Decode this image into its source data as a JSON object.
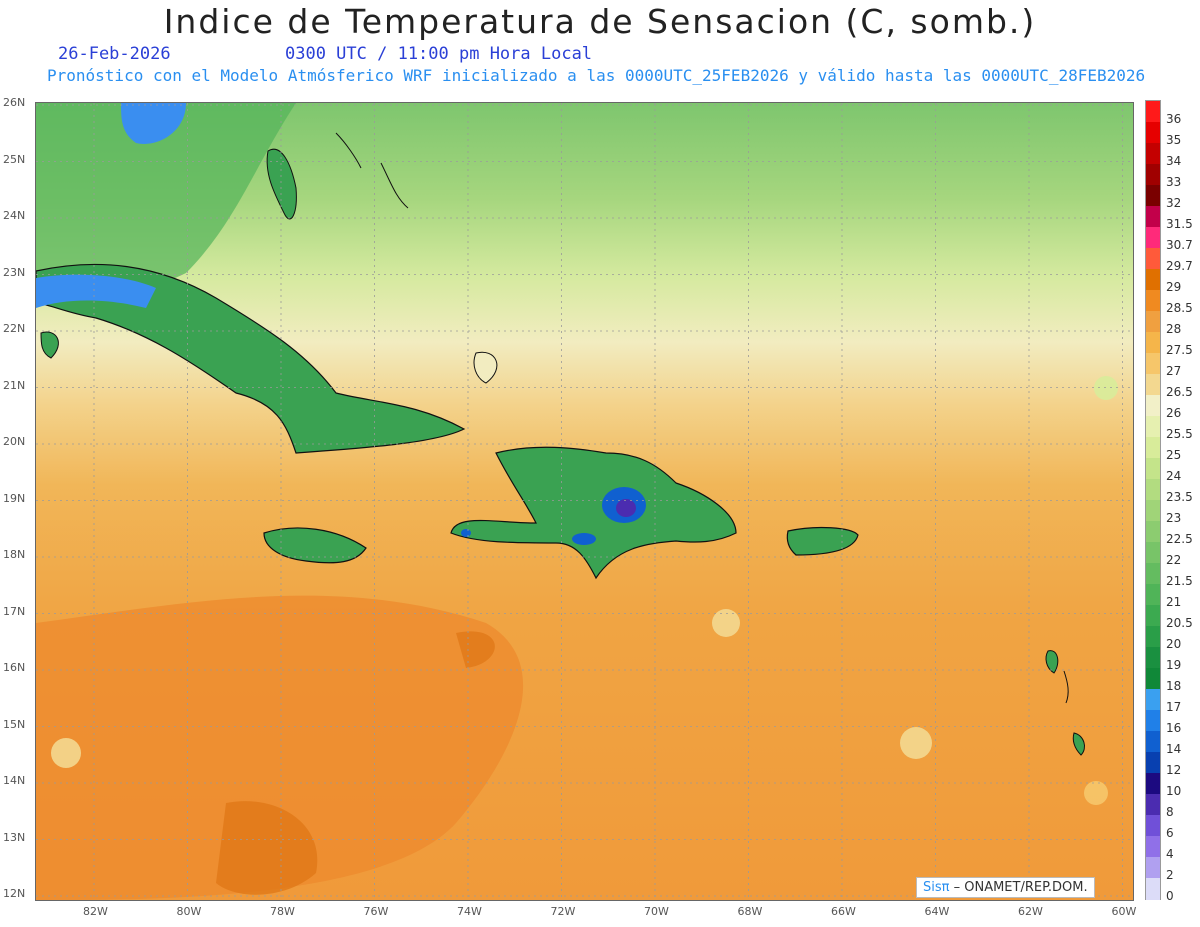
{
  "header": {
    "title": "Indice de Temperatura de Sensacion (C, somb.)",
    "date": "26-Feb-2026",
    "time": "0300 UTC / 11:00 pm Hora Local",
    "subtitle": "Pronóstico con el Modelo Atmósferico WRF inicializado a las 0000UTC_25FEB2026 y válido hasta las  0000UTC_28FEB2026"
  },
  "axes": {
    "lat_labels": [
      "26N",
      "25N",
      "24N",
      "23N",
      "22N",
      "21N",
      "20N",
      "19N",
      "18N",
      "17N",
      "16N",
      "15N",
      "14N",
      "13N",
      "12N"
    ],
    "lon_labels": [
      "82W",
      "80W",
      "78W",
      "76W",
      "74W",
      "72W",
      "70W",
      "68W",
      "66W",
      "64W",
      "62W",
      "60W"
    ]
  },
  "legend": {
    "labels": [
      "36",
      "35",
      "34",
      "33",
      "32",
      "31.5",
      "30.7",
      "29.7",
      "29",
      "28.5",
      "28",
      "27.5",
      "27",
      "26.5",
      "26",
      "25.5",
      "25",
      "24",
      "23.5",
      "23",
      "22.5",
      "22",
      "21.5",
      "21",
      "20.5",
      "20",
      "19",
      "18",
      "17",
      "16",
      "14",
      "12",
      "10",
      "8",
      "6",
      "4",
      "2",
      "0"
    ],
    "colors": [
      "#ff1a1a",
      "#e60000",
      "#c40000",
      "#a00000",
      "#7a0000",
      "#c2004a",
      "#ff2a7a",
      "#ff5a3a",
      "#e07000",
      "#f08a20",
      "#f0a040",
      "#f5b54a",
      "#f6c66a",
      "#f3d890",
      "#f2f0c8",
      "#e6f0b0",
      "#d8ec9a",
      "#c4e48a",
      "#b2dc80",
      "#a0d478",
      "#8ccc70",
      "#78c468",
      "#64bc60",
      "#50b458",
      "#3caa50",
      "#2a9e48",
      "#1a9040",
      "#108838",
      "#3aa0f0",
      "#2080e8",
      "#1060d0",
      "#0840b0",
      "#1c0a80",
      "#4b2cb0",
      "#7050d8",
      "#9070e8",
      "#b0a0f0",
      "#dcdcf8"
    ]
  },
  "credit": {
    "logo": "Sisπ",
    "text": " – ONAMET/REP.DOM."
  }
}
